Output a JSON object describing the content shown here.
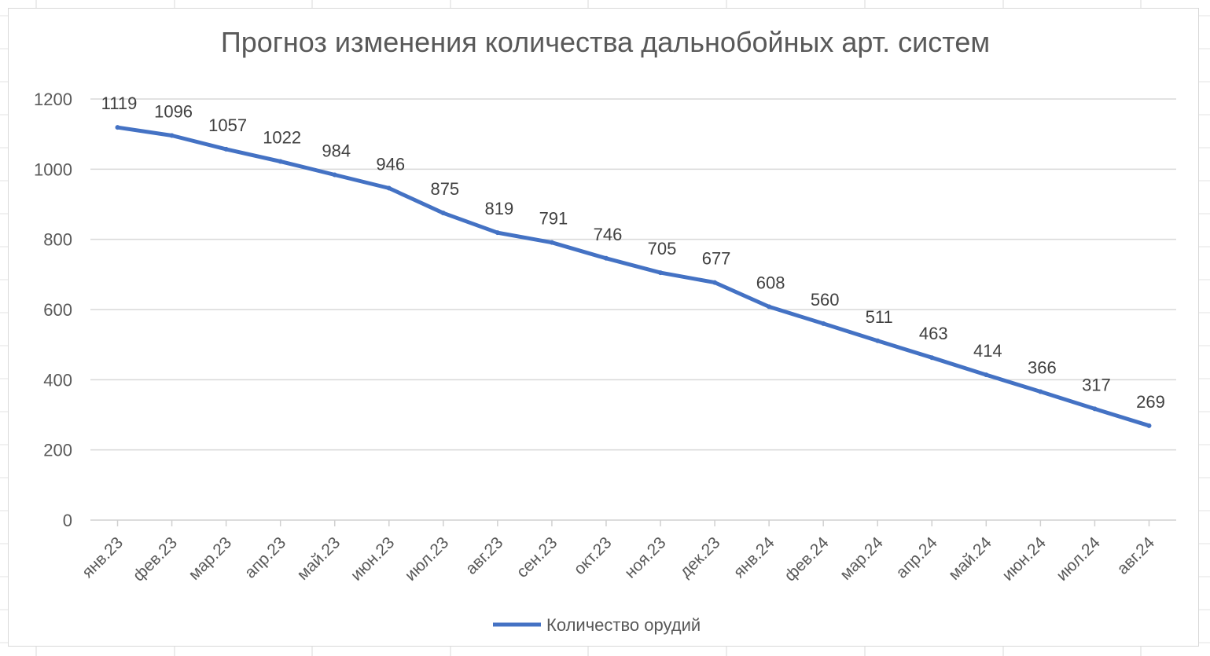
{
  "chart_data": {
    "type": "line",
    "title": "Прогноз изменения количества дальнобойных арт. систем",
    "xlabel": "",
    "ylabel": "",
    "categories": [
      "янв.23",
      "фев.23",
      "мар.23",
      "апр.23",
      "май.23",
      "июн.23",
      "июл.23",
      "авг.23",
      "сен.23",
      "окт.23",
      "ноя.23",
      "дек.23",
      "янв.24",
      "фев.24",
      "мар.24",
      "апр.24",
      "май.24",
      "июн.24",
      "июл.24",
      "авг.24"
    ],
    "series": [
      {
        "name": "Количество орудий",
        "color": "#4472c4",
        "values": [
          1119,
          1096,
          1057,
          1022,
          984,
          946,
          875,
          819,
          791,
          746,
          705,
          677,
          608,
          560,
          511,
          463,
          414,
          366,
          317,
          269
        ]
      }
    ],
    "ylim": [
      0,
      1200
    ],
    "yticks": [
      0,
      200,
      400,
      600,
      800,
      1000,
      1200
    ],
    "grid": true,
    "legend": "bottom",
    "data_labels": true
  }
}
